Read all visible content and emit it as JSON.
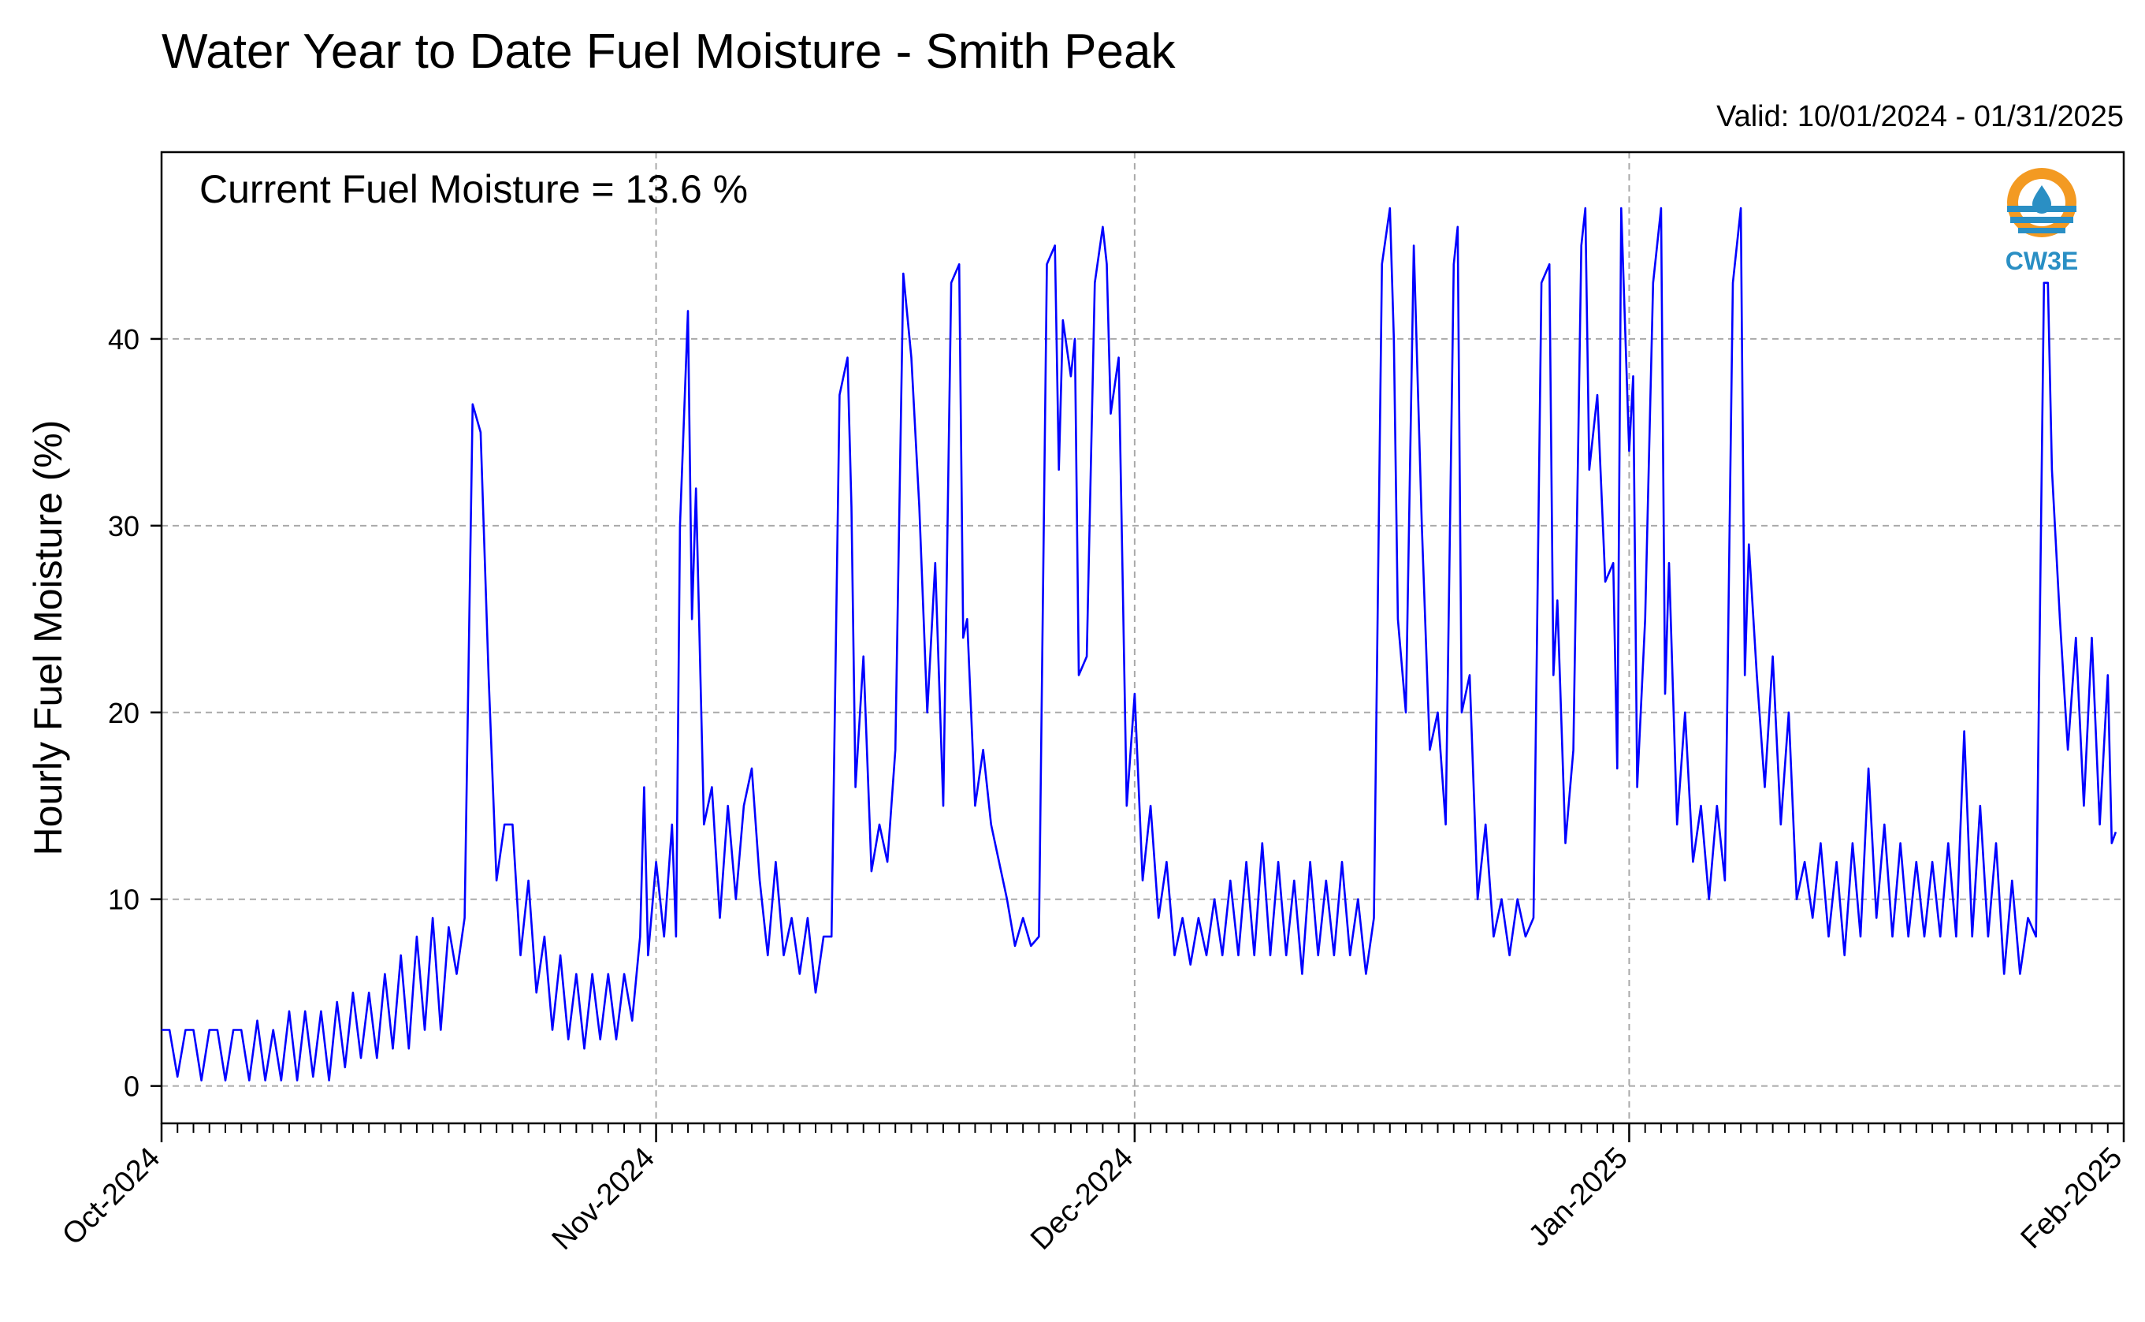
{
  "chart_data": {
    "type": "line",
    "title": "Water Year to Date Fuel Moisture - Smith Peak",
    "valid_label": "Valid: 10/01/2024 - 01/31/2025",
    "current_label": "Current Fuel Moisture = 13.6 %",
    "ylabel": "Hourly Fuel Moisture (%)",
    "xlabel": "",
    "ylim": [
      -2,
      50
    ],
    "xlim": [
      "2024-10-01",
      "2025-02-01"
    ],
    "yticks": [
      0,
      10,
      20,
      30,
      40
    ],
    "xticks": [
      {
        "date": "2024-10-01",
        "label": "Oct-2024"
      },
      {
        "date": "2024-11-01",
        "label": "Nov-2024"
      },
      {
        "date": "2024-12-01",
        "label": "Dec-2024"
      },
      {
        "date": "2025-01-01",
        "label": "Jan-2025"
      },
      {
        "date": "2025-02-01",
        "label": "Feb-2025"
      }
    ],
    "grid": true,
    "series": [
      {
        "color": "#0000ff",
        "points": [
          [
            "2024-10-01",
            3
          ],
          [
            "2024-10-01T12",
            3
          ],
          [
            "2024-10-02",
            0.5
          ],
          [
            "2024-10-02T12",
            3
          ],
          [
            "2024-10-03",
            3
          ],
          [
            "2024-10-03T12",
            0.3
          ],
          [
            "2024-10-04",
            3
          ],
          [
            "2024-10-04T12",
            3
          ],
          [
            "2024-10-05",
            0.3
          ],
          [
            "2024-10-05T12",
            3
          ],
          [
            "2024-10-06",
            3
          ],
          [
            "2024-10-06T12",
            0.3
          ],
          [
            "2024-10-07",
            3.5
          ],
          [
            "2024-10-07T12",
            0.3
          ],
          [
            "2024-10-08",
            3
          ],
          [
            "2024-10-08T12",
            0.3
          ],
          [
            "2024-10-09",
            4
          ],
          [
            "2024-10-09T12",
            0.3
          ],
          [
            "2024-10-10",
            4
          ],
          [
            "2024-10-10T12",
            0.5
          ],
          [
            "2024-10-11",
            4
          ],
          [
            "2024-10-11T12",
            0.3
          ],
          [
            "2024-10-12",
            4.5
          ],
          [
            "2024-10-12T12",
            1
          ],
          [
            "2024-10-13",
            5
          ],
          [
            "2024-10-13T12",
            1.5
          ],
          [
            "2024-10-14",
            5
          ],
          [
            "2024-10-14T12",
            1.5
          ],
          [
            "2024-10-15",
            6
          ],
          [
            "2024-10-15T12",
            2
          ],
          [
            "2024-10-16",
            7
          ],
          [
            "2024-10-16T12",
            2
          ],
          [
            "2024-10-17",
            8
          ],
          [
            "2024-10-17T12",
            3
          ],
          [
            "2024-10-18",
            9
          ],
          [
            "2024-10-18T12",
            3
          ],
          [
            "2024-10-19",
            8.5
          ],
          [
            "2024-10-19T12",
            6
          ],
          [
            "2024-10-20",
            9
          ],
          [
            "2024-10-20T12",
            36.5
          ],
          [
            "2024-10-21",
            35
          ],
          [
            "2024-10-21T12",
            22
          ],
          [
            "2024-10-22",
            11
          ],
          [
            "2024-10-22T12",
            14
          ],
          [
            "2024-10-23",
            14
          ],
          [
            "2024-10-23T12",
            7
          ],
          [
            "2024-10-24",
            11
          ],
          [
            "2024-10-24T12",
            5
          ],
          [
            "2024-10-25",
            8
          ],
          [
            "2024-10-25T12",
            3
          ],
          [
            "2024-10-26",
            7
          ],
          [
            "2024-10-26T12",
            2.5
          ],
          [
            "2024-10-27",
            6
          ],
          [
            "2024-10-27T12",
            2
          ],
          [
            "2024-10-28",
            6
          ],
          [
            "2024-10-28T12",
            2.5
          ],
          [
            "2024-10-29",
            6
          ],
          [
            "2024-10-29T12",
            2.5
          ],
          [
            "2024-10-30",
            6
          ],
          [
            "2024-10-30T12",
            3.5
          ],
          [
            "2024-10-31",
            8
          ],
          [
            "2024-10-31T06",
            16
          ],
          [
            "2024-10-31T12",
            7
          ],
          [
            "2024-11-01",
            12
          ],
          [
            "2024-11-01T12",
            8
          ],
          [
            "2024-11-02",
            14
          ],
          [
            "2024-11-02T06",
            8
          ],
          [
            "2024-11-02T12",
            30
          ],
          [
            "2024-11-03",
            41.5
          ],
          [
            "2024-11-03T06",
            25
          ],
          [
            "2024-11-03T12",
            32
          ],
          [
            "2024-11-04",
            14
          ],
          [
            "2024-11-04T12",
            16
          ],
          [
            "2024-11-05",
            9
          ],
          [
            "2024-11-05T12",
            15
          ],
          [
            "2024-11-06",
            10
          ],
          [
            "2024-11-06T12",
            15
          ],
          [
            "2024-11-07",
            17
          ],
          [
            "2024-11-07T12",
            11
          ],
          [
            "2024-11-08",
            7
          ],
          [
            "2024-11-08T12",
            12
          ],
          [
            "2024-11-09",
            7
          ],
          [
            "2024-11-09T12",
            9
          ],
          [
            "2024-11-10",
            6
          ],
          [
            "2024-11-10T12",
            9
          ],
          [
            "2024-11-11",
            5
          ],
          [
            "2024-11-11T12",
            8
          ],
          [
            "2024-11-12",
            8
          ],
          [
            "2024-11-12T12",
            37
          ],
          [
            "2024-11-13",
            39
          ],
          [
            "2024-11-13T06",
            31
          ],
          [
            "2024-11-13T12",
            16
          ],
          [
            "2024-11-14",
            23
          ],
          [
            "2024-11-14T12",
            11.5
          ],
          [
            "2024-11-15",
            14
          ],
          [
            "2024-11-15T12",
            12
          ],
          [
            "2024-11-16",
            18
          ],
          [
            "2024-11-16T12",
            43.5
          ],
          [
            "2024-11-17",
            39
          ],
          [
            "2024-11-17T12",
            31
          ],
          [
            "2024-11-18",
            20
          ],
          [
            "2024-11-18T12",
            28
          ],
          [
            "2024-11-19",
            15
          ],
          [
            "2024-11-19T12",
            43
          ],
          [
            "2024-11-20",
            44
          ],
          [
            "2024-11-20T06",
            24
          ],
          [
            "2024-11-20T12",
            25
          ],
          [
            "2024-11-21",
            15
          ],
          [
            "2024-11-21T12",
            18
          ],
          [
            "2024-11-22",
            14
          ],
          [
            "2024-11-22T12",
            12
          ],
          [
            "2024-11-23",
            10
          ],
          [
            "2024-11-23T12",
            7.5
          ],
          [
            "2024-11-24",
            9
          ],
          [
            "2024-11-24T12",
            7.5
          ],
          [
            "2024-11-25",
            8
          ],
          [
            "2024-11-25T12",
            44
          ],
          [
            "2024-11-26",
            45
          ],
          [
            "2024-11-26T06",
            33
          ],
          [
            "2024-11-26T12",
            41
          ],
          [
            "2024-11-27",
            38
          ],
          [
            "2024-11-27T06",
            40
          ],
          [
            "2024-11-27T12",
            22
          ],
          [
            "2024-11-28",
            23
          ],
          [
            "2024-11-28T12",
            43
          ],
          [
            "2024-11-29",
            46
          ],
          [
            "2024-11-29T06",
            44
          ],
          [
            "2024-11-29T12",
            36
          ],
          [
            "2024-11-30",
            39
          ],
          [
            "2024-11-30T12",
            15
          ],
          [
            "2024-12-01",
            21
          ],
          [
            "2024-12-01T12",
            11
          ],
          [
            "2024-12-02",
            15
          ],
          [
            "2024-12-02T12",
            9
          ],
          [
            "2024-12-03",
            12
          ],
          [
            "2024-12-03T12",
            7
          ],
          [
            "2024-12-04",
            9
          ],
          [
            "2024-12-04T12",
            6.5
          ],
          [
            "2024-12-05",
            9
          ],
          [
            "2024-12-05T12",
            7
          ],
          [
            "2024-12-06",
            10
          ],
          [
            "2024-12-06T12",
            7
          ],
          [
            "2024-12-07",
            11
          ],
          [
            "2024-12-07T12",
            7
          ],
          [
            "2024-12-08",
            12
          ],
          [
            "2024-12-08T12",
            7
          ],
          [
            "2024-12-09",
            13
          ],
          [
            "2024-12-09T12",
            7
          ],
          [
            "2024-12-10",
            12
          ],
          [
            "2024-12-10T12",
            7
          ],
          [
            "2024-12-11",
            11
          ],
          [
            "2024-12-11T12",
            6
          ],
          [
            "2024-12-12",
            12
          ],
          [
            "2024-12-12T12",
            7
          ],
          [
            "2024-12-13",
            11
          ],
          [
            "2024-12-13T12",
            7
          ],
          [
            "2024-12-14",
            12
          ],
          [
            "2024-12-14T12",
            7
          ],
          [
            "2024-12-15",
            10
          ],
          [
            "2024-12-15T12",
            6
          ],
          [
            "2024-12-16",
            9
          ],
          [
            "2024-12-16T12",
            44
          ],
          [
            "2024-12-17",
            47
          ],
          [
            "2024-12-17T06",
            40
          ],
          [
            "2024-12-17T12",
            25
          ],
          [
            "2024-12-18",
            20
          ],
          [
            "2024-12-18T12",
            45
          ],
          [
            "2024-12-19",
            30
          ],
          [
            "2024-12-19T12",
            18
          ],
          [
            "2024-12-20",
            20
          ],
          [
            "2024-12-20T12",
            14
          ],
          [
            "2024-12-21",
            44
          ],
          [
            "2024-12-21T06",
            46
          ],
          [
            "2024-12-21T12",
            20
          ],
          [
            "2024-12-22",
            22
          ],
          [
            "2024-12-22T12",
            10
          ],
          [
            "2024-12-23",
            14
          ],
          [
            "2024-12-23T12",
            8
          ],
          [
            "2024-12-24",
            10
          ],
          [
            "2024-12-24T12",
            7
          ],
          [
            "2024-12-25",
            10
          ],
          [
            "2024-12-25T12",
            8
          ],
          [
            "2024-12-26",
            9
          ],
          [
            "2024-12-26T12",
            43
          ],
          [
            "2024-12-27",
            44
          ],
          [
            "2024-12-27T06",
            22
          ],
          [
            "2024-12-27T12",
            26
          ],
          [
            "2024-12-28",
            13
          ],
          [
            "2024-12-28T12",
            18
          ],
          [
            "2024-12-29",
            45
          ],
          [
            "2024-12-29T06",
            47
          ],
          [
            "2024-12-29T12",
            33
          ],
          [
            "2024-12-30",
            37
          ],
          [
            "2024-12-30T12",
            27
          ],
          [
            "2024-12-31",
            28
          ],
          [
            "2024-12-31T06",
            17
          ],
          [
            "2024-12-31T12",
            47
          ],
          [
            "2025-01-01",
            34
          ],
          [
            "2025-01-01T06",
            38
          ],
          [
            "2025-01-01T12",
            16
          ],
          [
            "2025-01-02",
            25
          ],
          [
            "2025-01-02T12",
            43
          ],
          [
            "2025-01-03",
            47
          ],
          [
            "2025-01-03T06",
            21
          ],
          [
            "2025-01-03T12",
            28
          ],
          [
            "2025-01-04",
            14
          ],
          [
            "2025-01-04T12",
            20
          ],
          [
            "2025-01-05",
            12
          ],
          [
            "2025-01-05T12",
            15
          ],
          [
            "2025-01-06",
            10
          ],
          [
            "2025-01-06T12",
            15
          ],
          [
            "2025-01-07",
            11
          ],
          [
            "2025-01-07T12",
            43
          ],
          [
            "2025-01-08",
            47
          ],
          [
            "2025-01-08T06",
            22
          ],
          [
            "2025-01-08T12",
            29
          ],
          [
            "2025-01-09",
            22
          ],
          [
            "2025-01-09T12",
            16
          ],
          [
            "2025-01-10",
            23
          ],
          [
            "2025-01-10T12",
            14
          ],
          [
            "2025-01-11",
            20
          ],
          [
            "2025-01-11T12",
            10
          ],
          [
            "2025-01-12",
            12
          ],
          [
            "2025-01-12T12",
            9
          ],
          [
            "2025-01-13",
            13
          ],
          [
            "2025-01-13T12",
            8
          ],
          [
            "2025-01-14",
            12
          ],
          [
            "2025-01-14T12",
            7
          ],
          [
            "2025-01-15",
            13
          ],
          [
            "2025-01-15T12",
            8
          ],
          [
            "2025-01-16",
            17
          ],
          [
            "2025-01-16T12",
            9
          ],
          [
            "2025-01-17",
            14
          ],
          [
            "2025-01-17T12",
            8
          ],
          [
            "2025-01-18",
            13
          ],
          [
            "2025-01-18T12",
            8
          ],
          [
            "2025-01-19",
            12
          ],
          [
            "2025-01-19T12",
            8
          ],
          [
            "2025-01-20",
            12
          ],
          [
            "2025-01-20T12",
            8
          ],
          [
            "2025-01-21",
            13
          ],
          [
            "2025-01-21T12",
            8
          ],
          [
            "2025-01-22",
            19
          ],
          [
            "2025-01-22T12",
            8
          ],
          [
            "2025-01-23",
            15
          ],
          [
            "2025-01-23T12",
            8
          ],
          [
            "2025-01-24",
            13
          ],
          [
            "2025-01-24T12",
            6
          ],
          [
            "2025-01-25",
            11
          ],
          [
            "2025-01-25T12",
            6
          ],
          [
            "2025-01-26",
            9
          ],
          [
            "2025-01-26T12",
            8
          ],
          [
            "2025-01-27",
            43
          ],
          [
            "2025-01-27T06",
            43
          ],
          [
            "2025-01-27T12",
            33
          ],
          [
            "2025-01-28",
            25
          ],
          [
            "2025-01-28T12",
            18
          ],
          [
            "2025-01-29",
            24
          ],
          [
            "2025-01-29T12",
            15
          ],
          [
            "2025-01-30",
            24
          ],
          [
            "2025-01-30T12",
            14
          ],
          [
            "2025-01-31",
            22
          ],
          [
            "2025-01-31T06",
            13
          ],
          [
            "2025-01-31T12",
            13.6
          ]
        ]
      }
    ]
  },
  "logo": {
    "text": "CW3E",
    "ring_color": "#f39a22",
    "wave_color": "#2a8fc4"
  }
}
